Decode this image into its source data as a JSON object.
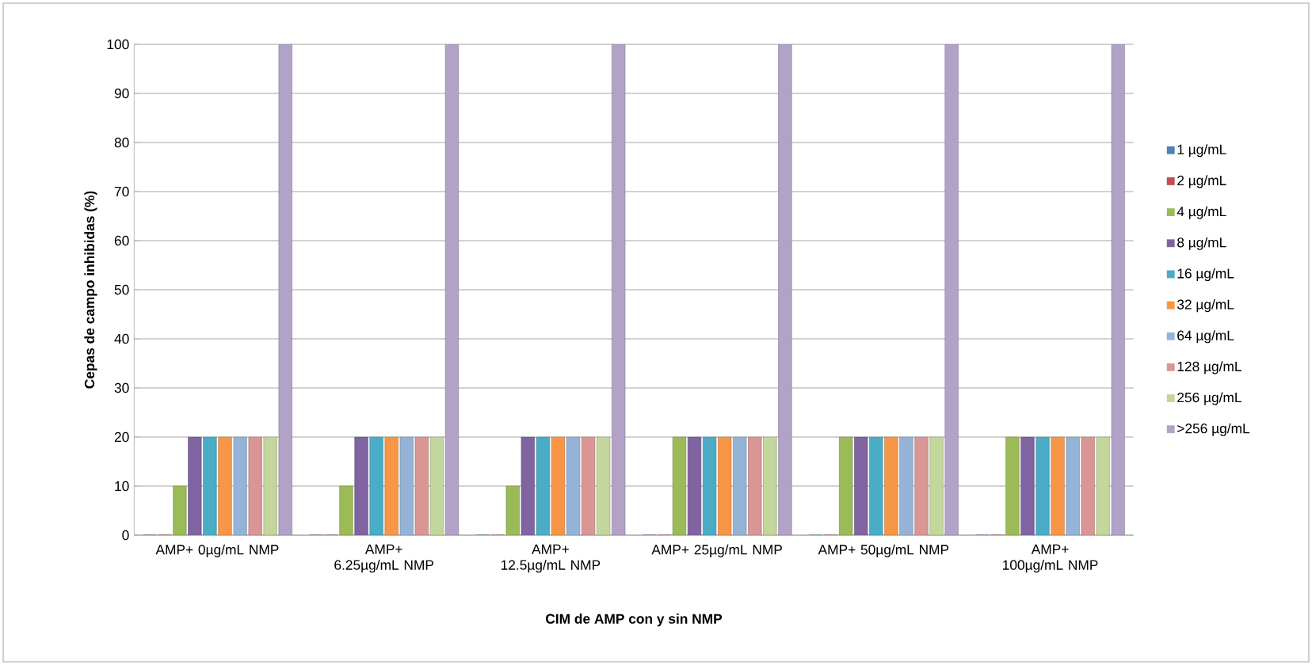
{
  "chart_data": {
    "type": "bar",
    "xlabel": "CIM de AMP con y sin NMP",
    "ylabel": "Cepas de campo inhibidas (%)",
    "categories": [
      "AMP+ 0µg/mL NMP",
      "AMP+ 6.25µg/mL NMP",
      "AMP+ 12.5µg/mL NMP",
      "AMP+ 25µg/mL NMP",
      "AMP+ 50µg/mL NMP",
      "AMP+ 100µg/mL NMP"
    ],
    "series": [
      {
        "name": "1 µg/mL",
        "color": "#4f81bd",
        "values": [
          0,
          0,
          0,
          0,
          0,
          0
        ]
      },
      {
        "name": "2 µg/mL",
        "color": "#c0504d",
        "values": [
          0,
          0,
          0,
          0,
          0,
          0
        ]
      },
      {
        "name": "4 µg/mL",
        "color": "#9bbb59",
        "values": [
          10,
          10,
          10,
          20,
          20,
          20
        ]
      },
      {
        "name": "8 µg/mL",
        "color": "#8064a2",
        "values": [
          20,
          20,
          20,
          20,
          20,
          20
        ]
      },
      {
        "name": "16 µg/mL",
        "color": "#4bacc6",
        "values": [
          20,
          20,
          20,
          20,
          20,
          20
        ]
      },
      {
        "name": "32 µg/mL",
        "color": "#f79646",
        "values": [
          20,
          20,
          20,
          20,
          20,
          20
        ]
      },
      {
        "name": "64 µg/mL",
        "color": "#95b3d7",
        "values": [
          20,
          20,
          20,
          20,
          20,
          20
        ]
      },
      {
        "name": "128 µg/mL",
        "color": "#d99694",
        "values": [
          20,
          20,
          20,
          20,
          20,
          20
        ]
      },
      {
        "name": "256 µg/mL",
        "color": "#c3d69b",
        "values": [
          20,
          20,
          20,
          20,
          20,
          20
        ]
      },
      {
        "name": ">256 µg/mL",
        "color": "#b3a2c7",
        "values": [
          100,
          100,
          100,
          100,
          100,
          100
        ]
      }
    ],
    "ylim": [
      0,
      100
    ],
    "yticks": [
      0,
      10,
      20,
      30,
      40,
      50,
      60,
      70,
      80,
      90,
      100
    ],
    "grid": "y",
    "legend": "right"
  }
}
